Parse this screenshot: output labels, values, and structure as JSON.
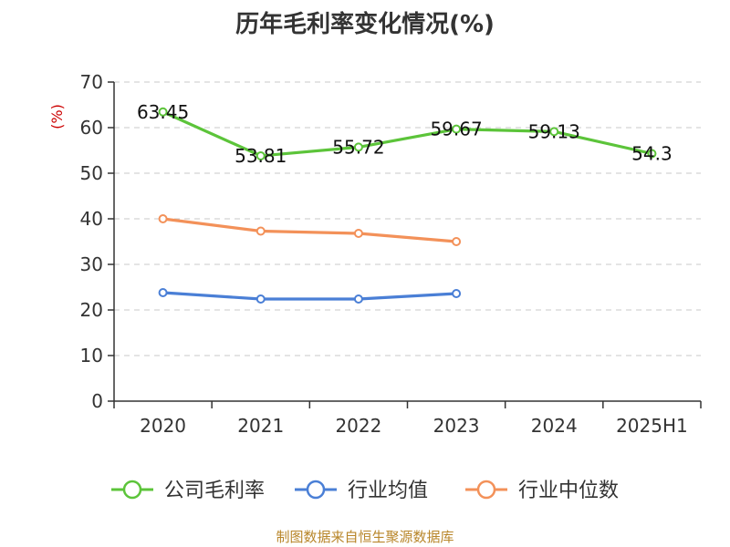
{
  "chart_data": {
    "type": "line",
    "title": "历年毛利率变化情况(%)",
    "ylabel": "(%)",
    "xlabel": "",
    "categories": [
      "2020",
      "2021",
      "2022",
      "2023",
      "2024",
      "2025H1"
    ],
    "ylim": [
      0,
      70
    ],
    "yticks": [
      0,
      10,
      20,
      30,
      40,
      50,
      60,
      70
    ],
    "grid": true,
    "legend_position": "bottom",
    "series": [
      {
        "name": "公司毛利率",
        "color": "#5cc43a",
        "values": [
          63.45,
          53.81,
          55.72,
          59.67,
          59.13,
          54.3
        ],
        "labels": [
          "63.45",
          "53.81",
          "55.72",
          "59.67",
          "59.13",
          "54.3"
        ]
      },
      {
        "name": "行业均值",
        "color": "#4a7fd6",
        "values": [
          23.8,
          22.4,
          22.4,
          23.6,
          null,
          null
        ]
      },
      {
        "name": "行业中位数",
        "color": "#f39159",
        "values": [
          40.0,
          37.3,
          36.8,
          35.0,
          null,
          null
        ]
      }
    ]
  },
  "source": "制图数据来自恒生聚源数据库"
}
